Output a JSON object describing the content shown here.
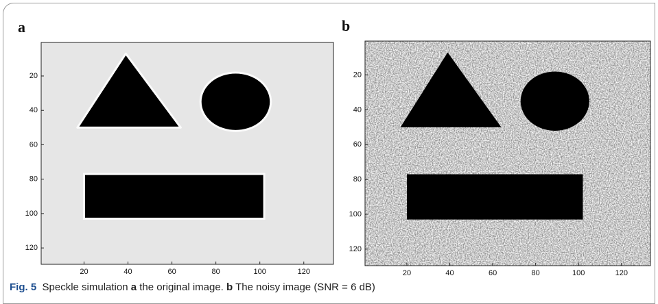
{
  "chart_data": [
    {
      "type": "image",
      "label": "a",
      "noise": false,
      "xlim": [
        0.5,
        133.5
      ],
      "ylim": [
        0.5,
        129.5
      ],
      "y_reversed": true,
      "xticks": [
        20,
        40,
        60,
        80,
        100,
        120
      ],
      "yticks": [
        20,
        40,
        60,
        80,
        100,
        120
      ]
    },
    {
      "type": "image",
      "label": "b",
      "noise": true,
      "xlim": [
        0.5,
        133.5
      ],
      "ylim": [
        0.5,
        129.5
      ],
      "y_reversed": true,
      "xticks": [
        20,
        40,
        60,
        80,
        100,
        120
      ],
      "yticks": [
        20,
        40,
        60,
        80,
        100,
        120
      ]
    }
  ],
  "caption": {
    "label": "Fig. 5",
    "text1": "Speckle simulation",
    "a": "a",
    "text2": "the original image.",
    "b": "b",
    "text3": "The noisy image (SNR = 6 dB)"
  }
}
